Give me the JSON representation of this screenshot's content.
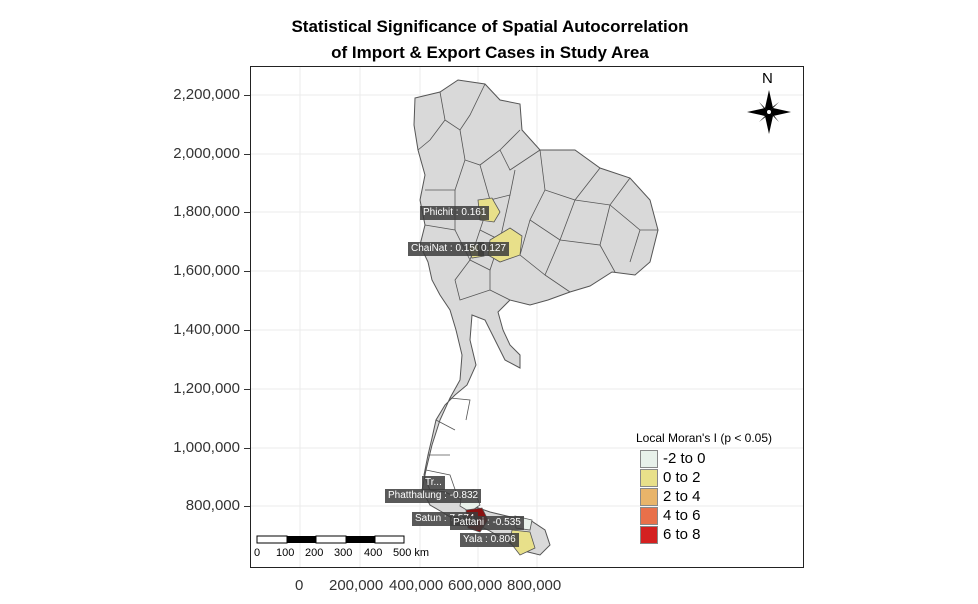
{
  "title_line1": "Statistical Significance of Spatial Autocorrelation",
  "title_line2": "of Import & Export Cases in Study Area",
  "y_ticks": [
    "2,200,000",
    "2,000,000",
    "1,800,000",
    "1,600,000",
    "1,400,000",
    "1,200,000",
    "1,000,000",
    "800,000"
  ],
  "x_ticks": [
    "0",
    "200,000",
    "400,000",
    "600,000",
    "800,000"
  ],
  "legend": {
    "title": "Local Moran's I (p < 0.05)",
    "items": [
      {
        "label": "-2 to 0",
        "color": "#e8f1ea"
      },
      {
        "label": "0 to 2",
        "color": "#e8e08a"
      },
      {
        "label": "2 to 4",
        "color": "#e8b46a"
      },
      {
        "label": "4 to 6",
        "color": "#e8704a"
      },
      {
        "label": "6 to 8",
        "color": "#d42020"
      }
    ]
  },
  "north_arrow": {
    "label": "N"
  },
  "scale_bar": {
    "labels": [
      "0",
      "100",
      "200",
      "300",
      "400",
      "500 km"
    ]
  },
  "region_labels": [
    {
      "name": "phichit",
      "text": "Phichit : 0.161"
    },
    {
      "name": "chai-nat",
      "text": "ChaiNat : 0.150"
    },
    {
      "name": "nakhon-sawan",
      "text": "0.127"
    },
    {
      "name": "trang",
      "text": "Tr..."
    },
    {
      "name": "phatthalung",
      "text": "Phatthalung : -0.832"
    },
    {
      "name": "satun",
      "text": "Satun : 7.574"
    },
    {
      "name": "pattani",
      "text": "Pattani : -0.535"
    },
    {
      "name": "yala",
      "text": "Yala : 0.806"
    }
  ],
  "colors": {
    "province_fill": "#d9d9d9",
    "province_stroke": "#555555",
    "grid": "#ebebeb"
  }
}
